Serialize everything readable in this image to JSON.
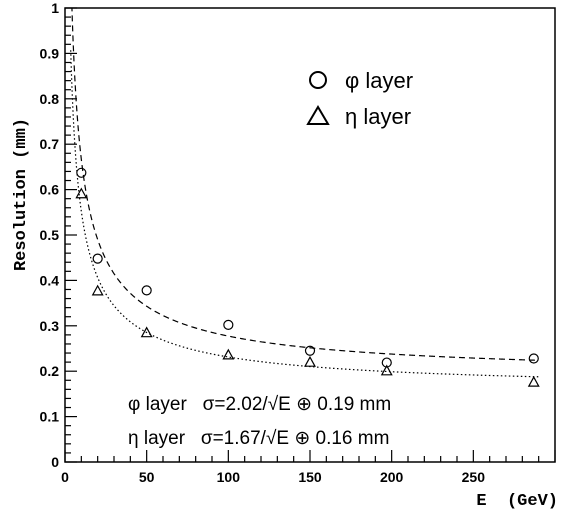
{
  "chart_data": {
    "type": "scatter",
    "title": "",
    "xlabel": "E  (GeV)",
    "ylabel": "Resolution (mm)",
    "xlim": [
      0,
      300
    ],
    "ylim": [
      0,
      1
    ],
    "x_ticks": [
      0,
      50,
      100,
      150,
      200,
      250
    ],
    "x_tick_labels": [
      "0",
      "50",
      "100",
      "150",
      "200",
      "250"
    ],
    "y_ticks": [
      0,
      0.1,
      0.2,
      0.3,
      0.4,
      0.5,
      0.6,
      0.7,
      0.8,
      0.9,
      1
    ],
    "y_tick_labels": [
      "0",
      "0.1",
      "0.2",
      "0.3",
      "0.4",
      "0.5",
      "0.6",
      "0.7",
      "0.8",
      "0.9",
      "1"
    ],
    "grid": false,
    "legend_position": "top-right",
    "series": [
      {
        "name": "φ layer",
        "marker": "circle",
        "x": [
          10,
          20,
          50,
          100,
          150,
          197,
          287
        ],
        "y": [
          0.637,
          0.448,
          0.378,
          0.302,
          0.245,
          0.219,
          0.228
        ],
        "fit": {
          "stochastic": 2.02,
          "constant": 0.19,
          "style": "dashed"
        }
      },
      {
        "name": "η layer",
        "marker": "triangle",
        "x": [
          10,
          20,
          50,
          100,
          150,
          197,
          287
        ],
        "y": [
          0.59,
          0.376,
          0.284,
          0.235,
          0.219,
          0.2,
          0.175
        ],
        "fit": {
          "stochastic": 1.67,
          "constant": 0.16,
          "style": "dotted"
        }
      }
    ],
    "annotations": [
      "φ layer   σ=2.02/√E ⊕ 0.19 mm",
      "η layer   σ=1.67/√E ⊕ 0.16 mm"
    ]
  }
}
